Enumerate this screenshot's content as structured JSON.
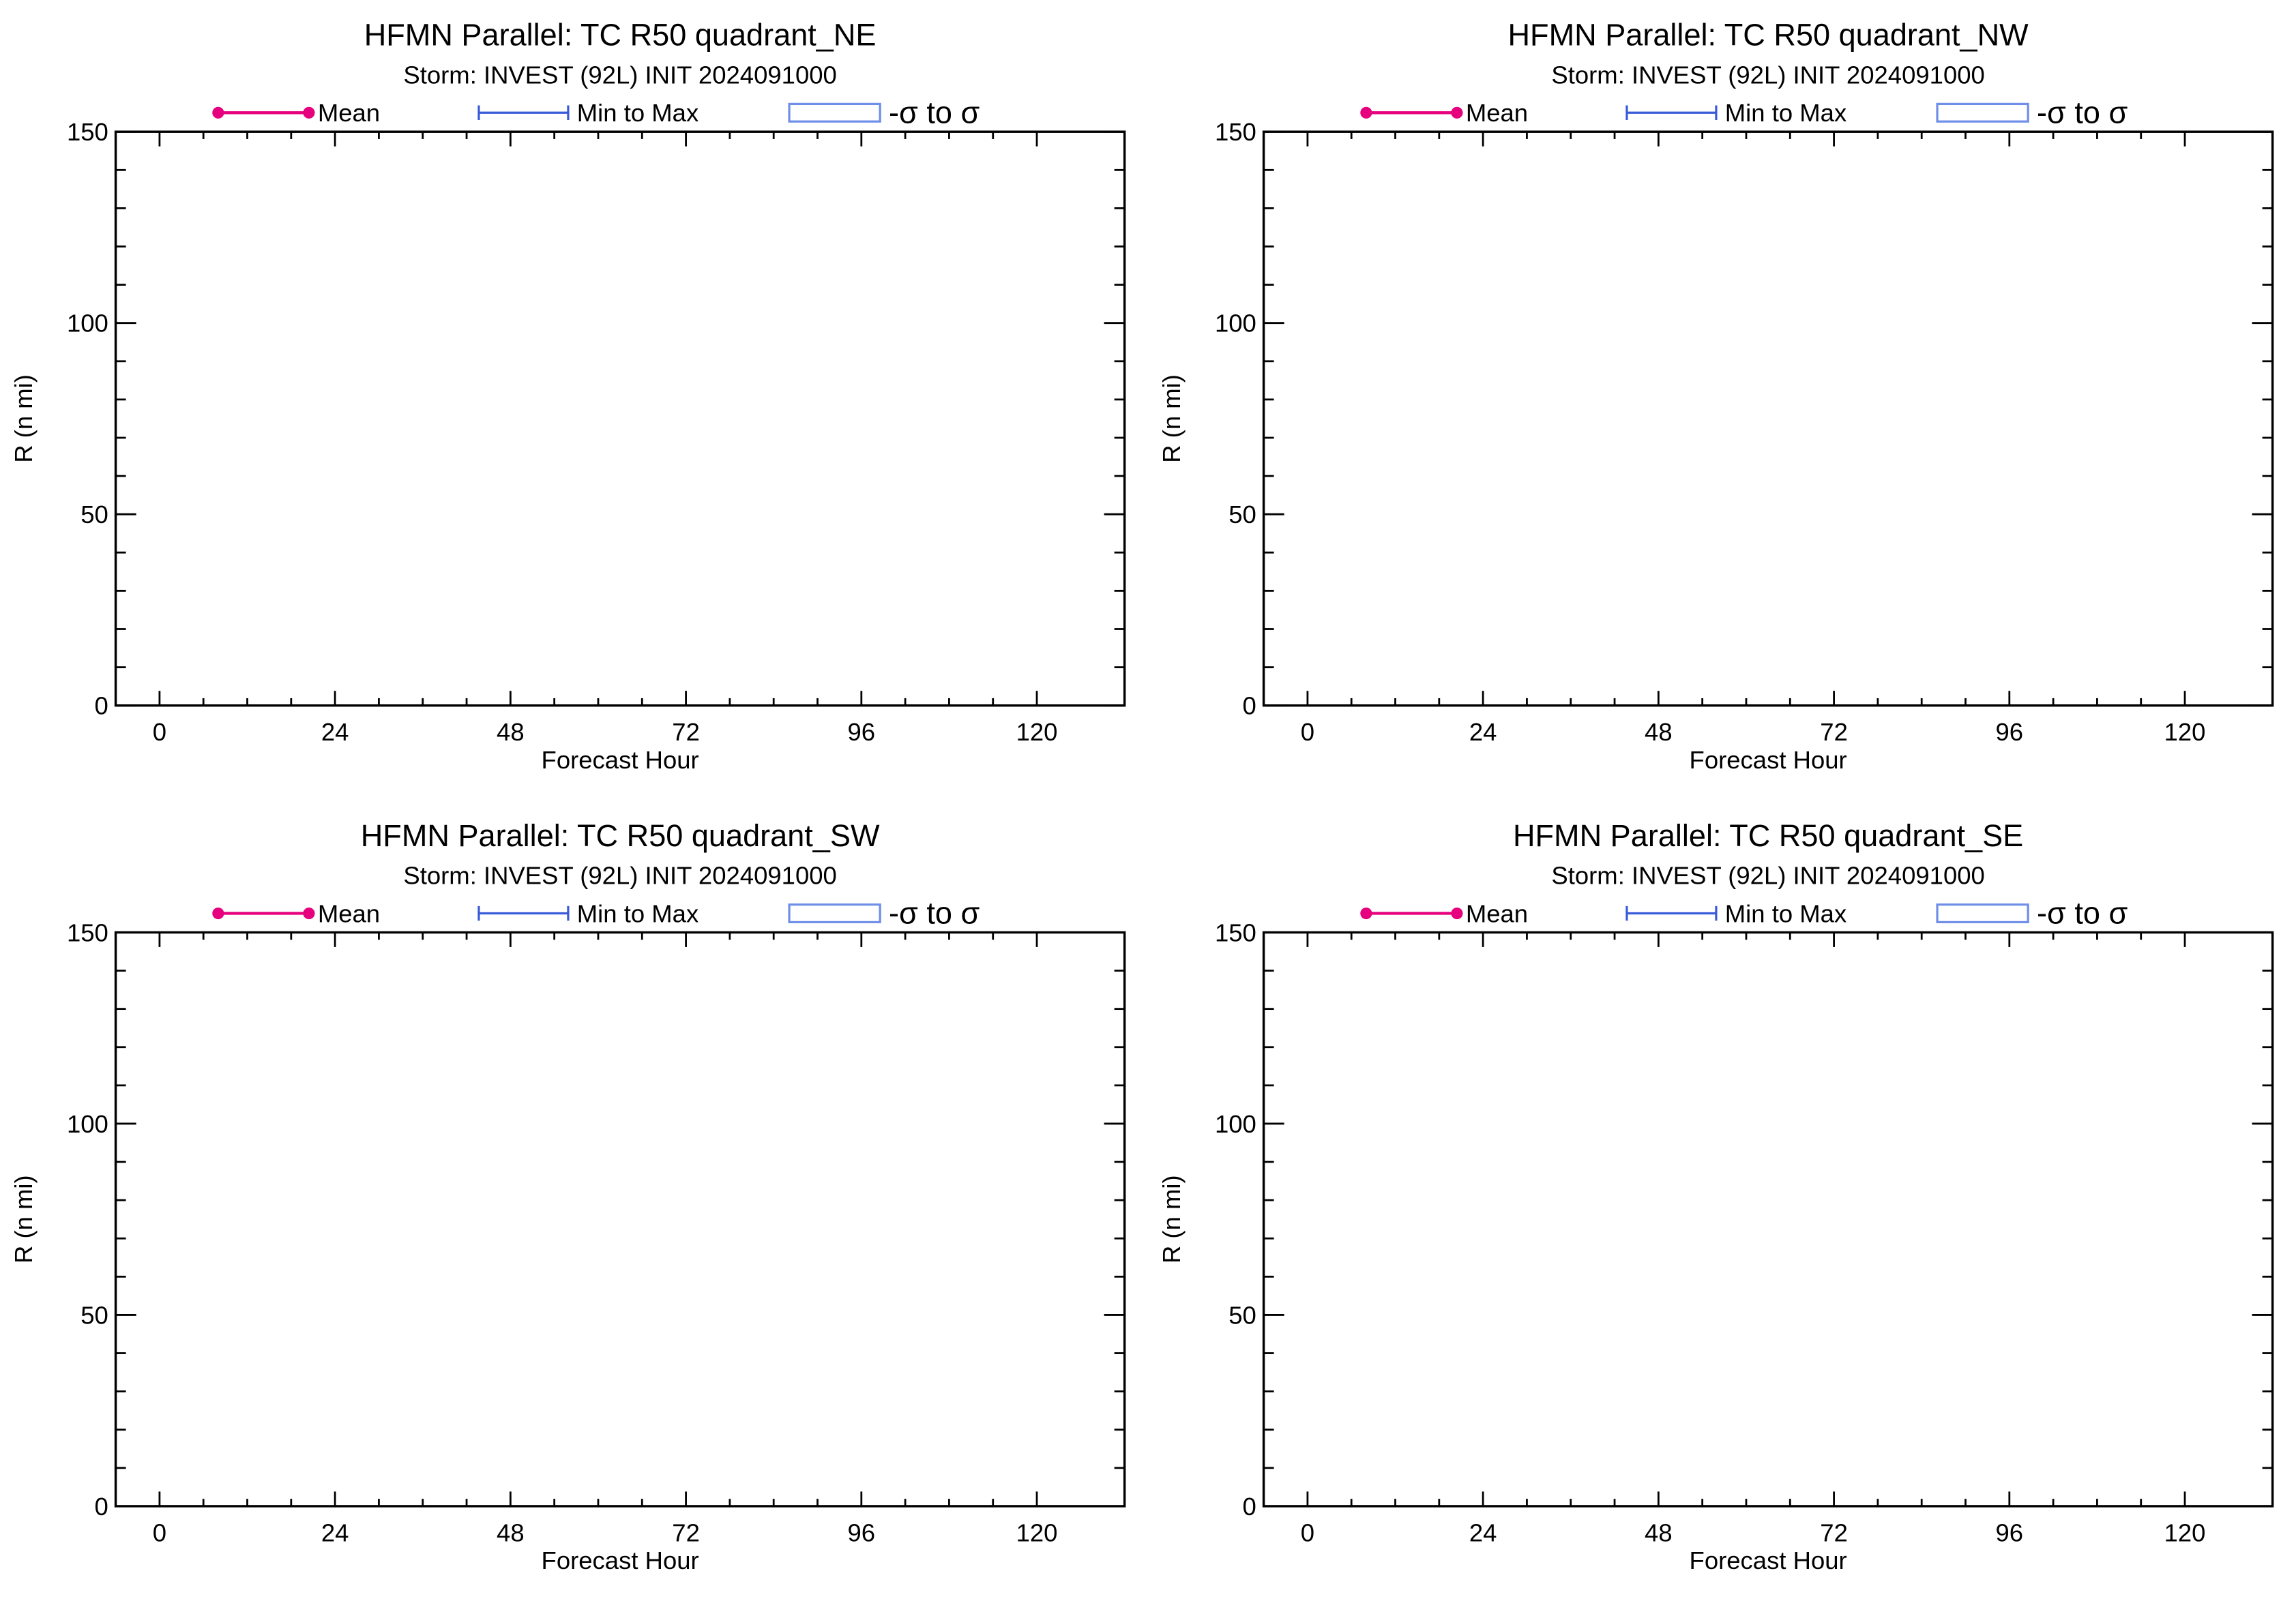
{
  "figure": {
    "background": "#ffffff",
    "mean_color": "#e6007e",
    "minmax_color": "#3a5bd9",
    "sigma_color": "#6f8fe8"
  },
  "chart_data": [
    {
      "type": "line",
      "title": "HFMN Parallel: TC  R50 quadrant_NE",
      "subtitle": "Storm: INVEST (92L) INIT 2024091000",
      "xlabel": "Forecast Hour",
      "ylabel": "R (n mi)",
      "xlim": [
        -6,
        132
      ],
      "ylim": [
        0,
        150
      ],
      "xticks": [
        0,
        24,
        48,
        72,
        96,
        120
      ],
      "yticks": [
        0,
        50,
        100,
        150
      ],
      "x_minor_step": 6,
      "y_minor_step": 10,
      "grid": false,
      "legend_position": "top",
      "legend": [
        {
          "kind": "mean",
          "label": "Mean"
        },
        {
          "kind": "minmax",
          "label": "Min to Max"
        },
        {
          "kind": "sigma",
          "label": "-σ to σ"
        }
      ],
      "series": []
    },
    {
      "type": "line",
      "title": "HFMN Parallel: TC  R50 quadrant_NW",
      "subtitle": "Storm: INVEST (92L) INIT 2024091000",
      "xlabel": "Forecast Hour",
      "ylabel": "R (n mi)",
      "xlim": [
        -6,
        132
      ],
      "ylim": [
        0,
        150
      ],
      "xticks": [
        0,
        24,
        48,
        72,
        96,
        120
      ],
      "yticks": [
        0,
        50,
        100,
        150
      ],
      "x_minor_step": 6,
      "y_minor_step": 10,
      "grid": false,
      "legend_position": "top",
      "legend": [
        {
          "kind": "mean",
          "label": "Mean"
        },
        {
          "kind": "minmax",
          "label": "Min to Max"
        },
        {
          "kind": "sigma",
          "label": "-σ to σ"
        }
      ],
      "series": []
    },
    {
      "type": "line",
      "title": "HFMN Parallel: TC  R50 quadrant_SW",
      "subtitle": "Storm: INVEST (92L) INIT 2024091000",
      "xlabel": "Forecast Hour",
      "ylabel": "R (n mi)",
      "xlim": [
        -6,
        132
      ],
      "ylim": [
        0,
        150
      ],
      "xticks": [
        0,
        24,
        48,
        72,
        96,
        120
      ],
      "yticks": [
        0,
        50,
        100,
        150
      ],
      "x_minor_step": 6,
      "y_minor_step": 10,
      "grid": false,
      "legend_position": "top",
      "legend": [
        {
          "kind": "mean",
          "label": "Mean"
        },
        {
          "kind": "minmax",
          "label": "Min to Max"
        },
        {
          "kind": "sigma",
          "label": "-σ to σ"
        }
      ],
      "series": []
    },
    {
      "type": "line",
      "title": "HFMN Parallel: TC  R50 quadrant_SE",
      "subtitle": "Storm: INVEST (92L) INIT 2024091000",
      "xlabel": "Forecast Hour",
      "ylabel": "R (n mi)",
      "xlim": [
        -6,
        132
      ],
      "ylim": [
        0,
        150
      ],
      "xticks": [
        0,
        24,
        48,
        72,
        96,
        120
      ],
      "yticks": [
        0,
        50,
        100,
        150
      ],
      "x_minor_step": 6,
      "y_minor_step": 10,
      "grid": false,
      "legend_position": "top",
      "legend": [
        {
          "kind": "mean",
          "label": "Mean"
        },
        {
          "kind": "minmax",
          "label": "Min to Max"
        },
        {
          "kind": "sigma",
          "label": "-σ to σ"
        }
      ],
      "series": []
    }
  ]
}
